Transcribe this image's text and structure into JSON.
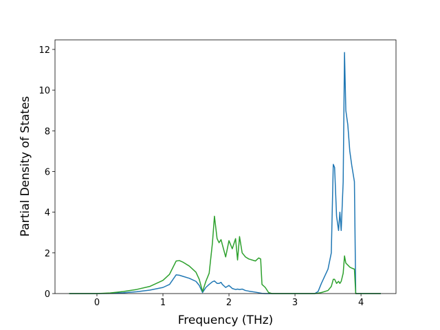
{
  "chart_data": {
    "type": "line",
    "xlabel": "Frequency (THz)",
    "ylabel": "Partial Density of States",
    "x": [
      -0.42,
      0,
      0.2,
      0.4,
      0.6,
      0.8,
      1.0,
      1.1,
      1.2,
      1.25,
      1.3,
      1.4,
      1.5,
      1.55,
      1.6,
      1.65,
      1.7,
      1.75,
      1.78,
      1.82,
      1.85,
      1.88,
      1.9,
      1.95,
      2.0,
      2.05,
      2.1,
      2.13,
      2.16,
      2.2,
      2.25,
      2.3,
      2.4,
      2.45,
      2.48,
      2.5,
      2.55,
      2.6,
      2.65,
      2.8,
      3.0,
      3.3,
      3.35,
      3.4,
      3.5,
      3.55,
      3.58,
      3.6,
      3.63,
      3.66,
      3.68,
      3.7,
      3.73,
      3.75,
      3.77,
      3.8,
      3.83,
      3.86,
      3.9,
      3.92,
      4.0,
      4.3
    ],
    "series": [
      {
        "color": "#1f77b4",
        "values": [
          0,
          0,
          0.01,
          0.04,
          0.09,
          0.17,
          0.3,
          0.45,
          0.92,
          0.9,
          0.85,
          0.75,
          0.6,
          0.4,
          0.05,
          0.3,
          0.45,
          0.58,
          0.62,
          0.5,
          0.5,
          0.55,
          0.45,
          0.3,
          0.4,
          0.25,
          0.2,
          0.22,
          0.2,
          0.22,
          0.15,
          0.12,
          0.07,
          0.04,
          0.02,
          0.01,
          0,
          0,
          0,
          0,
          0,
          0,
          0.1,
          0.5,
          1.2,
          2.0,
          6.35,
          6.2,
          3.8,
          3.1,
          4.0,
          3.1,
          5.5,
          11.85,
          9.0,
          8.3,
          7.0,
          6.3,
          5.5,
          0,
          0,
          0
        ]
      },
      {
        "color": "#2ca02c",
        "values": [
          0,
          0,
          0.03,
          0.1,
          0.2,
          0.35,
          0.65,
          0.95,
          1.6,
          1.62,
          1.55,
          1.35,
          1.05,
          0.7,
          0.1,
          0.6,
          1.0,
          2.5,
          3.8,
          2.7,
          2.5,
          2.65,
          2.4,
          1.8,
          2.6,
          2.2,
          2.7,
          1.65,
          2.8,
          2.0,
          1.8,
          1.7,
          1.6,
          1.75,
          1.7,
          0.45,
          0.3,
          0.05,
          0,
          0,
          0,
          0,
          0.02,
          0.05,
          0.15,
          0.35,
          0.7,
          0.7,
          0.5,
          0.6,
          0.5,
          0.6,
          1.0,
          1.85,
          1.5,
          1.4,
          1.3,
          1.25,
          1.2,
          0,
          0,
          0
        ]
      }
    ],
    "xlim": [
      -0.635,
      4.53
    ],
    "xticks": [
      0,
      1,
      2,
      3,
      4
    ],
    "ylim": [
      0,
      12.47
    ],
    "yticks": [
      0,
      2,
      4,
      6,
      8,
      10,
      12
    ],
    "grid": false
  }
}
